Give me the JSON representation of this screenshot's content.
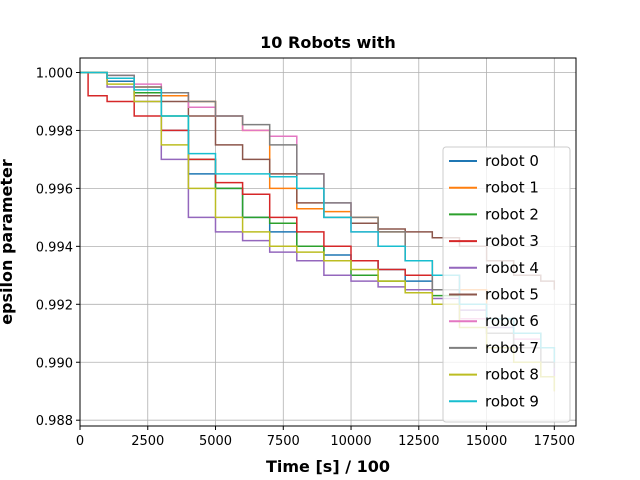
{
  "chart_data": {
    "type": "line",
    "title": "10 Robots with",
    "xlabel": "Time [s] / 100",
    "ylabel": "epsilon parameter",
    "xlim": [
      0,
      18300
    ],
    "ylim": [
      0.9878,
      1.0005
    ],
    "xticks": [
      0,
      2500,
      5000,
      7500,
      10000,
      12500,
      15000,
      17500
    ],
    "xtick_labels": [
      "0",
      "2500",
      "5000",
      "7500",
      "10000",
      "12500",
      "15000",
      "17500"
    ],
    "yticks": [
      0.988,
      0.99,
      0.992,
      0.994,
      0.996,
      0.998,
      1.0
    ],
    "ytick_labels": [
      "0.988",
      "0.990",
      "0.992",
      "0.994",
      "0.996",
      "0.998",
      "1.000"
    ],
    "grid": true,
    "legend_position": "right",
    "series": [
      {
        "name": "robot 0",
        "color": "#1f77b4",
        "x": [
          0,
          1000,
          2000,
          3000,
          4000,
          5000,
          6000,
          7000,
          8000,
          9000,
          10000,
          11000,
          12000,
          13000,
          14000,
          15000,
          16000,
          17000,
          17500
        ],
        "y": [
          1.0,
          0.9997,
          0.9992,
          0.998,
          0.9965,
          0.996,
          0.995,
          0.9945,
          0.994,
          0.9937,
          0.9935,
          0.9932,
          0.9928,
          0.9925,
          0.9915,
          0.991,
          0.9905,
          0.99,
          0.9895
        ]
      },
      {
        "name": "robot 1",
        "color": "#ff7f0e",
        "x": [
          0,
          1000,
          2000,
          3000,
          4000,
          5000,
          6000,
          7000,
          8000,
          9000,
          10000,
          11000,
          12000,
          13000,
          14000,
          15000,
          16000,
          17000,
          17500
        ],
        "y": [
          1.0,
          0.9998,
          0.9995,
          0.9992,
          0.999,
          0.9985,
          0.998,
          0.996,
          0.9953,
          0.9952,
          0.995,
          0.9945,
          0.9935,
          0.993,
          0.9925,
          0.9915,
          0.9905,
          0.9895,
          0.989
        ]
      },
      {
        "name": "robot 2",
        "color": "#2ca02c",
        "x": [
          0,
          1000,
          2000,
          3000,
          4000,
          5000,
          6000,
          7000,
          8000,
          9000,
          10000,
          11000,
          12000,
          13000,
          14000,
          15000,
          16000,
          17000,
          17500
        ],
        "y": [
          1.0,
          0.9998,
          0.9993,
          0.9985,
          0.997,
          0.996,
          0.995,
          0.9948,
          0.994,
          0.9935,
          0.993,
          0.9928,
          0.9925,
          0.9923,
          0.992,
          0.9915,
          0.991,
          0.9905,
          0.99
        ]
      },
      {
        "name": "robot 3",
        "color": "#d62728",
        "x": [
          0,
          300,
          1000,
          2000,
          3000,
          4000,
          5000,
          6000,
          7000,
          8000,
          9000,
          10000,
          11000,
          12000,
          13000,
          14000,
          15000,
          16000,
          17000,
          17500
        ],
        "y": [
          1.0,
          0.9992,
          0.999,
          0.9985,
          0.998,
          0.997,
          0.9962,
          0.9958,
          0.995,
          0.9945,
          0.994,
          0.9935,
          0.9932,
          0.993,
          0.9925,
          0.992,
          0.9915,
          0.991,
          0.9905,
          0.99
        ]
      },
      {
        "name": "robot 4",
        "color": "#9467bd",
        "x": [
          0,
          1000,
          2000,
          3000,
          4000,
          5000,
          6000,
          7000,
          8000,
          9000,
          10000,
          11000,
          12000,
          13000,
          14000,
          15000,
          16000,
          17000,
          17500
        ],
        "y": [
          1.0,
          0.9995,
          0.999,
          0.997,
          0.995,
          0.9945,
          0.9942,
          0.9938,
          0.9935,
          0.993,
          0.9928,
          0.9926,
          0.9925,
          0.9922,
          0.9918,
          0.9912,
          0.9905,
          0.99,
          0.9895
        ]
      },
      {
        "name": "robot 5",
        "color": "#8c564b",
        "x": [
          0,
          1000,
          2000,
          3000,
          4000,
          5000,
          6000,
          7000,
          8000,
          9000,
          10000,
          11000,
          12000,
          13000,
          14000,
          15000,
          16000,
          17000,
          17500
        ],
        "y": [
          1.0,
          0.9998,
          0.9992,
          0.999,
          0.9985,
          0.9975,
          0.997,
          0.9965,
          0.9955,
          0.995,
          0.9948,
          0.9946,
          0.9945,
          0.9943,
          0.994,
          0.9935,
          0.993,
          0.9928,
          0.9925
        ]
      },
      {
        "name": "robot 6",
        "color": "#e377c2",
        "x": [
          0,
          1000,
          2000,
          3000,
          4000,
          5000,
          6000,
          7000,
          8000,
          9000,
          10000,
          11000,
          12000,
          13000,
          14000,
          15000,
          16000,
          17000,
          17500
        ],
        "y": [
          1.0,
          0.9999,
          0.9996,
          0.9993,
          0.9988,
          0.9985,
          0.998,
          0.9978,
          0.9965,
          0.9955,
          0.9945,
          0.994,
          0.9935,
          0.993,
          0.9915,
          0.991,
          0.9908,
          0.9905,
          0.99
        ]
      },
      {
        "name": "robot 7",
        "color": "#7f7f7f",
        "x": [
          0,
          1000,
          2000,
          3000,
          4000,
          5000,
          6000,
          7000,
          8000,
          9000,
          10000,
          11000,
          12000,
          13000,
          14000,
          15000,
          16000,
          17000,
          17500
        ],
        "y": [
          1.0,
          0.9999,
          0.9995,
          0.9993,
          0.999,
          0.9985,
          0.9982,
          0.9975,
          0.9965,
          0.9955,
          0.995,
          0.9945,
          0.9935,
          0.9925,
          0.992,
          0.991,
          0.9905,
          0.99,
          0.9898
        ]
      },
      {
        "name": "robot 8",
        "color": "#bcbd22",
        "x": [
          0,
          1000,
          2000,
          3000,
          4000,
          5000,
          6000,
          7000,
          8000,
          9000,
          10000,
          11000,
          12000,
          13000,
          14000,
          15000,
          16000,
          17000,
          17500
        ],
        "y": [
          1.0,
          0.9996,
          0.999,
          0.9975,
          0.996,
          0.995,
          0.9945,
          0.994,
          0.9938,
          0.9935,
          0.9932,
          0.9928,
          0.9924,
          0.992,
          0.9912,
          0.9905,
          0.99,
          0.9895,
          0.989
        ]
      },
      {
        "name": "robot 9",
        "color": "#17becf",
        "x": [
          0,
          1000,
          2000,
          3000,
          4000,
          5000,
          6000,
          7000,
          8000,
          9000,
          10000,
          11000,
          12000,
          13000,
          14000,
          15000,
          16000,
          17000,
          17500
        ],
        "y": [
          1.0,
          0.9998,
          0.9994,
          0.9985,
          0.9972,
          0.9965,
          0.9965,
          0.9964,
          0.996,
          0.995,
          0.9945,
          0.994,
          0.9935,
          0.993,
          0.992,
          0.9915,
          0.991,
          0.9905,
          0.99
        ]
      }
    ]
  }
}
